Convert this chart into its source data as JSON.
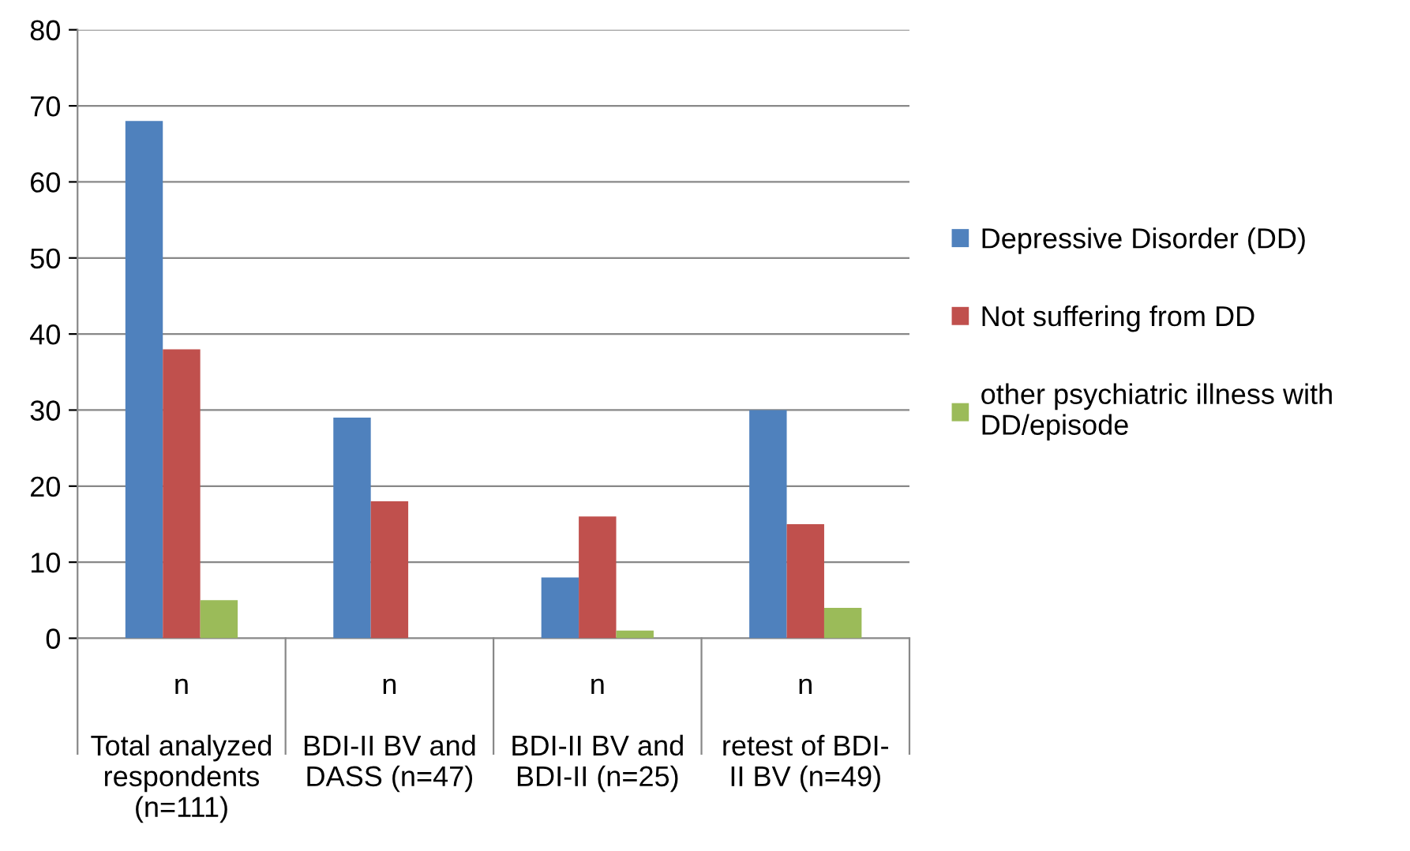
{
  "chart_data": {
    "type": "bar",
    "categories": [
      "n\n\nTotal analyzed\nrespondents\n(n=111)",
      "n\n\nBDI-II BV and\nDASS (n=47)",
      "n\n\nBDI-II BV and\nBDI-II (n=25)",
      "n\n\nretest of BDI-\nII BV (n=49)"
    ],
    "series": [
      {
        "name": "Depressive Disorder (DD)",
        "color": "#4f81bd",
        "values": [
          68,
          29,
          8,
          30
        ]
      },
      {
        "name": "Not suffering from DD",
        "color": "#c0504d",
        "values": [
          38,
          18,
          16,
          15
        ]
      },
      {
        "name": "other psychiatric illness with\nDD/episode",
        "color": "#9bbb59",
        "values": [
          5,
          0,
          1,
          4
        ]
      }
    ],
    "ylim": [
      0,
      80
    ],
    "yticks": [
      0,
      10,
      20,
      30,
      40,
      50,
      60,
      70,
      80
    ],
    "grid": "y",
    "legend": "right"
  }
}
